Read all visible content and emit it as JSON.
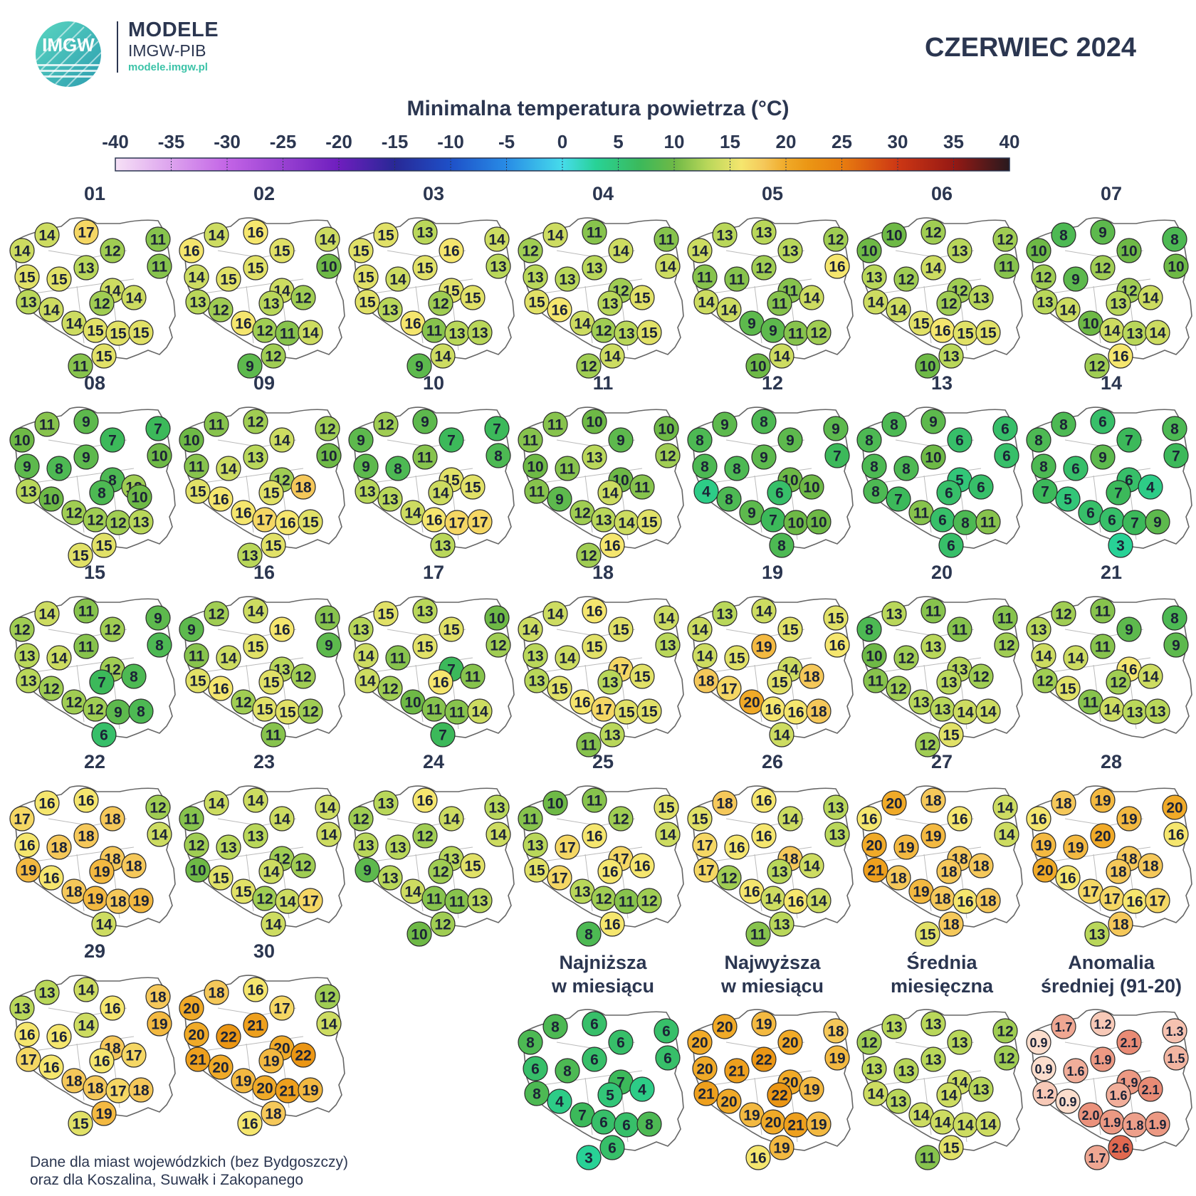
{
  "header": {
    "logo_text": "IMGW",
    "brand_line1": "MODELE",
    "brand_line2": "IMGW-PIB",
    "brand_url": "modele.imgw.pl",
    "month": "CZERWIEC 2024"
  },
  "colorbar": {
    "title": "Minimalna temperatura powietrza (°C)",
    "ticks": [
      "-40",
      "-35",
      "-30",
      "-25",
      "-20",
      "-15",
      "-10",
      "-5",
      "0",
      "5",
      "10",
      "15",
      "20",
      "25",
      "30",
      "35",
      "40"
    ],
    "range": [
      -40,
      40
    ]
  },
  "days": [
    {
      "label": "01",
      "values": [
        14,
        17,
        11,
        14,
        12,
        11,
        15,
        15,
        13,
        14,
        13,
        14,
        14,
        12,
        14,
        15,
        15,
        15,
        15,
        11
      ]
    },
    {
      "label": "02",
      "values": [
        14,
        16,
        14,
        16,
        15,
        10,
        14,
        15,
        15,
        14,
        13,
        12,
        16,
        13,
        12,
        12,
        11,
        14,
        12,
        9
      ]
    },
    {
      "label": "03",
      "values": [
        15,
        13,
        14,
        15,
        16,
        13,
        15,
        14,
        15,
        15,
        15,
        13,
        16,
        12,
        15,
        11,
        13,
        13,
        14,
        9
      ]
    },
    {
      "label": "04",
      "values": [
        14,
        11,
        11,
        12,
        14,
        14,
        13,
        13,
        13,
        12,
        15,
        16,
        14,
        13,
        15,
        12,
        13,
        15,
        14,
        12
      ]
    },
    {
      "label": "05",
      "values": [
        13,
        13,
        12,
        14,
        13,
        16,
        11,
        11,
        12,
        11,
        14,
        14,
        9,
        11,
        14,
        9,
        11,
        12,
        14,
        10
      ]
    },
    {
      "label": "06",
      "values": [
        10,
        12,
        12,
        10,
        13,
        11,
        13,
        12,
        14,
        12,
        14,
        14,
        15,
        12,
        13,
        16,
        15,
        15,
        13,
        10
      ]
    },
    {
      "label": "07",
      "values": [
        8,
        9,
        8,
        10,
        10,
        10,
        12,
        9,
        12,
        12,
        13,
        14,
        10,
        13,
        14,
        14,
        13,
        14,
        16,
        12
      ]
    },
    {
      "label": "08",
      "values": [
        11,
        9,
        7,
        10,
        7,
        10,
        9,
        8,
        9,
        8,
        13,
        10,
        12,
        8,
        12,
        12,
        12,
        13,
        15,
        15,
        10
      ]
    },
    {
      "label": "09",
      "values": [
        11,
        12,
        12,
        10,
        14,
        10,
        11,
        14,
        13,
        12,
        15,
        16,
        16,
        15,
        18,
        17,
        16,
        15,
        15,
        13
      ]
    },
    {
      "label": "10",
      "values": [
        12,
        9,
        7,
        9,
        7,
        8,
        9,
        8,
        11,
        15,
        13,
        13,
        14,
        14,
        15,
        16,
        17,
        17,
        13
      ]
    },
    {
      "label": "11",
      "values": [
        11,
        10,
        10,
        11,
        9,
        12,
        10,
        11,
        13,
        10,
        11,
        9,
        12,
        14,
        11,
        13,
        14,
        15,
        16,
        12
      ]
    },
    {
      "label": "12",
      "values": [
        9,
        8,
        9,
        8,
        9,
        7,
        8,
        8,
        9,
        10,
        4,
        8,
        9,
        6,
        10,
        7,
        10,
        10,
        8
      ]
    },
    {
      "label": "13",
      "values": [
        8,
        9,
        6,
        8,
        6,
        6,
        8,
        8,
        10,
        5,
        8,
        7,
        11,
        6,
        6,
        6,
        8,
        11,
        6
      ]
    },
    {
      "label": "14",
      "values": [
        8,
        6,
        8,
        8,
        7,
        7,
        8,
        6,
        9,
        6,
        7,
        5,
        6,
        7,
        4,
        6,
        7,
        9,
        3
      ]
    },
    {
      "label": "15",
      "values": [
        14,
        11,
        9,
        12,
        12,
        8,
        13,
        14,
        11,
        12,
        13,
        12,
        12,
        7,
        8,
        12,
        9,
        8,
        6
      ]
    },
    {
      "label": "16",
      "values": [
        12,
        14,
        11,
        9,
        16,
        9,
        11,
        14,
        15,
        13,
        15,
        16,
        12,
        15,
        12,
        15,
        15,
        12,
        11
      ]
    },
    {
      "label": "17",
      "values": [
        15,
        13,
        10,
        13,
        15,
        12,
        14,
        11,
        15,
        7,
        14,
        12,
        10,
        16,
        11,
        11,
        11,
        14,
        7
      ]
    },
    {
      "label": "18",
      "values": [
        14,
        16,
        14,
        14,
        15,
        13,
        13,
        14,
        15,
        17,
        13,
        15,
        16,
        13,
        15,
        17,
        15,
        15,
        13,
        11
      ]
    },
    {
      "label": "19",
      "values": [
        13,
        14,
        15,
        14,
        15,
        16,
        14,
        15,
        19,
        14,
        18,
        17,
        20,
        15,
        18,
        16,
        16,
        18,
        14
      ]
    },
    {
      "label": "20",
      "values": [
        13,
        11,
        11,
        8,
        11,
        12,
        10,
        12,
        13,
        13,
        11,
        12,
        13,
        13,
        12,
        13,
        14,
        14,
        15,
        12
      ]
    },
    {
      "label": "21",
      "values": [
        12,
        11,
        8,
        13,
        9,
        9,
        14,
        14,
        11,
        16,
        12,
        15,
        11,
        12,
        14,
        14,
        13,
        13
      ]
    },
    {
      "label": "22",
      "values": [
        16,
        16,
        12,
        17,
        18,
        14,
        16,
        18,
        18,
        18,
        19,
        16,
        18,
        19,
        18,
        19,
        18,
        19,
        14
      ]
    },
    {
      "label": "23",
      "values": [
        14,
        14,
        14,
        11,
        14,
        14,
        12,
        13,
        13,
        12,
        10,
        15,
        15,
        14,
        12,
        12,
        14,
        17,
        14
      ]
    },
    {
      "label": "24",
      "values": [
        13,
        16,
        13,
        12,
        14,
        14,
        13,
        13,
        12,
        13,
        9,
        13,
        14,
        12,
        15,
        11,
        11,
        13,
        12,
        10
      ]
    },
    {
      "label": "25",
      "values": [
        10,
        11,
        15,
        11,
        12,
        14,
        13,
        17,
        16,
        17,
        15,
        17,
        13,
        16,
        16,
        12,
        11,
        12,
        16,
        8
      ]
    },
    {
      "label": "26",
      "values": [
        18,
        16,
        13,
        15,
        14,
        13,
        17,
        16,
        16,
        18,
        17,
        12,
        16,
        13,
        14,
        14,
        16,
        14,
        13,
        11
      ]
    },
    {
      "label": "27",
      "values": [
        20,
        18,
        14,
        16,
        16,
        14,
        20,
        19,
        19,
        18,
        21,
        18,
        19,
        18,
        18,
        18,
        16,
        18,
        18,
        15
      ]
    },
    {
      "label": "28",
      "values": [
        18,
        19,
        20,
        16,
        19,
        16,
        19,
        19,
        20,
        18,
        20,
        16,
        17,
        18,
        18,
        17,
        16,
        17,
        18,
        13
      ]
    },
    {
      "label": "29",
      "values": [
        13,
        14,
        18,
        13,
        16,
        19,
        16,
        16,
        14,
        18,
        17,
        16,
        18,
        16,
        17,
        18,
        17,
        18,
        19,
        15
      ]
    },
    {
      "label": "30",
      "values": [
        18,
        16,
        12,
        20,
        17,
        14,
        20,
        22,
        21,
        20,
        21,
        20,
        19,
        19,
        22,
        20,
        21,
        19,
        18,
        16
      ]
    }
  ],
  "summaries": [
    {
      "label_line1": "Najniższa",
      "label_line2": "w miesiącu",
      "values": [
        8,
        6,
        6,
        8,
        6,
        6,
        6,
        8,
        6,
        7,
        8,
        4,
        7,
        5,
        4,
        6,
        6,
        8,
        6,
        3
      ]
    },
    {
      "label_line1": "Najwyższa",
      "label_line2": "w miesiącu",
      "values": [
        20,
        19,
        18,
        20,
        20,
        19,
        20,
        21,
        22,
        20,
        21,
        20,
        19,
        22,
        19,
        20,
        21,
        19,
        19,
        16
      ]
    },
    {
      "label_line1": "Średnia",
      "label_line2": "miesięczna",
      "values": [
        13,
        13,
        12,
        12,
        13,
        12,
        13,
        13,
        13,
        14,
        14,
        13,
        14,
        14,
        13,
        14,
        14,
        14,
        15,
        11
      ]
    },
    {
      "label_line1": "Anomalia",
      "label_line2": "średniej (91-20)",
      "values": [
        "1.7",
        "1.2",
        "1.3",
        "0.9",
        "2.1",
        "1.5",
        "0.9",
        "1.6",
        "1.9",
        "1.9",
        "1.2",
        "0.9",
        "2.0",
        "1.6",
        "2.1",
        "1.9",
        "1.8",
        "1.9",
        "2.6",
        "1.7"
      ]
    }
  ],
  "note_line1": "Dane dla miast wojewódzkich (bez Bydgoszczy)",
  "note_line2": "oraz dla Koszalina, Suwałk i Zakopanego",
  "colors": {
    "text": "#2b3650",
    "accent": "#3cc3a8",
    "map_fill": "#ffffff",
    "map_stroke": "#555555"
  }
}
